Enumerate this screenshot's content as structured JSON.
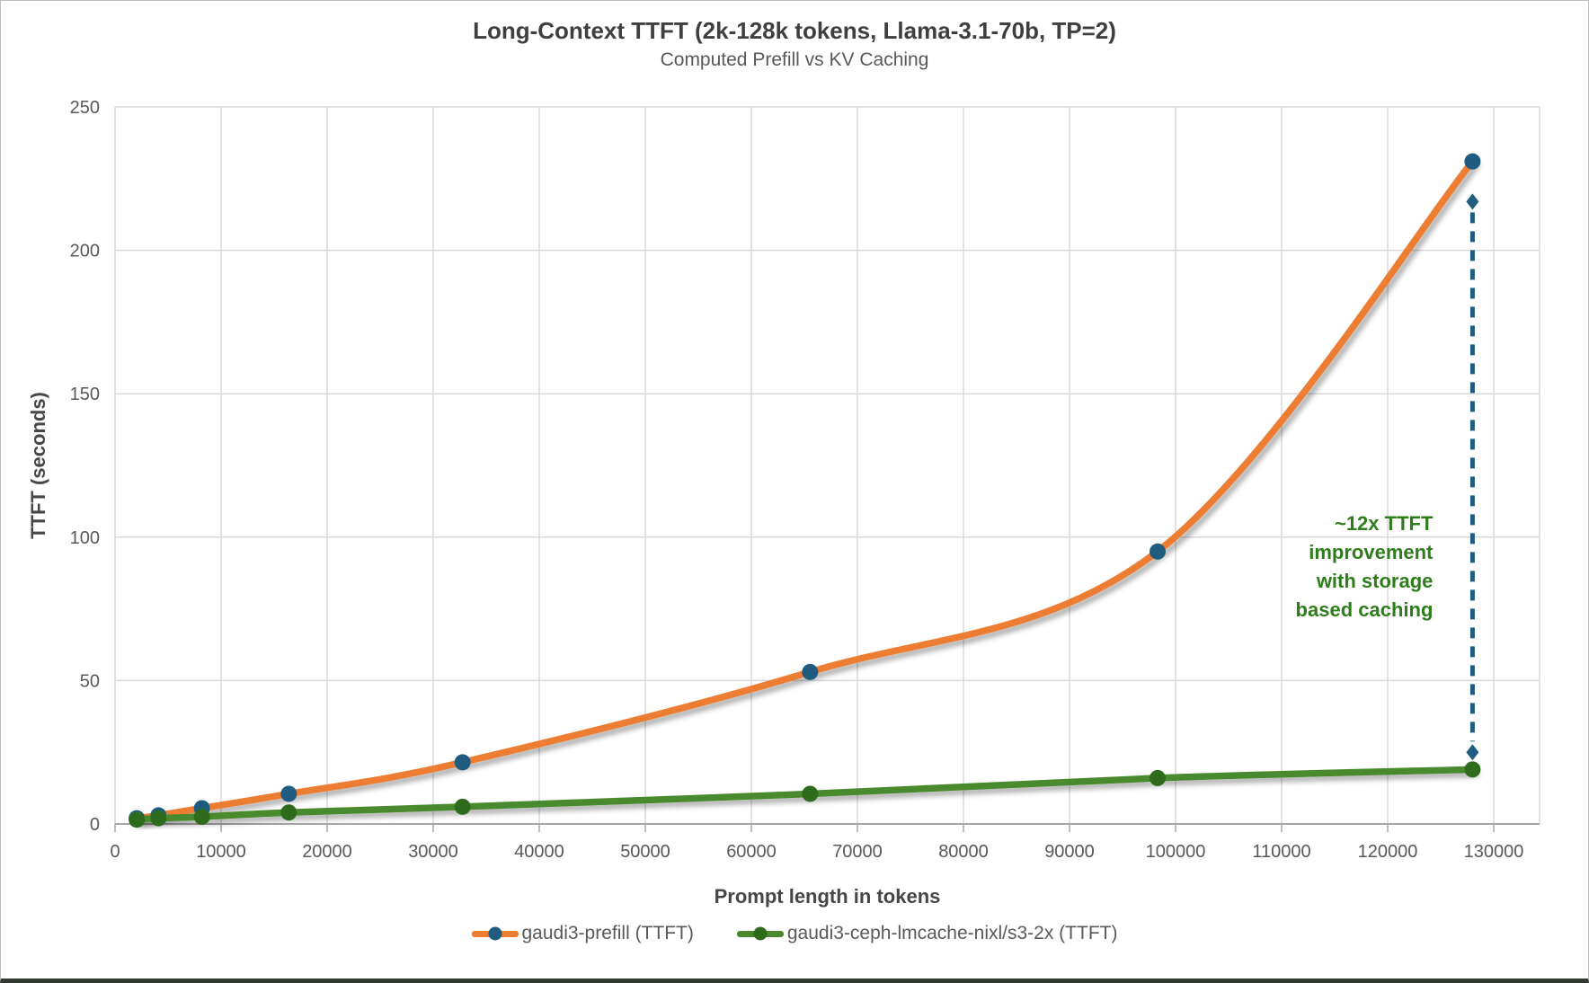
{
  "chart_data": {
    "type": "line",
    "title": "Long-Context TTFT (2k-128k tokens, Llama-3.1-70b, TP=2)",
    "subtitle": "Computed Prefill vs KV Caching",
    "xlabel": "Prompt length in tokens",
    "ylabel": "TTFT (seconds)",
    "x": [
      2048,
      4096,
      8192,
      16384,
      32768,
      65536,
      98304,
      128000
    ],
    "series": [
      {
        "name": "gaudi3-prefill (TTFT)",
        "line_color": "#ED7D31",
        "marker_color": "#1F5C80",
        "values": [
          2,
          3,
          5.5,
          10.5,
          21.5,
          53,
          95,
          231
        ]
      },
      {
        "name": "gaudi3-ceph-lmcache-nixl/s3-2x (TTFT)",
        "line_color": "#4A8A2D",
        "marker_color": "#2F6B1C",
        "values": [
          1.5,
          2,
          2.5,
          4,
          6,
          10.5,
          16,
          19
        ]
      }
    ],
    "xlim": [
      0,
      134500
    ],
    "ylim": [
      0,
      250
    ],
    "x_ticks": [
      0,
      10000,
      20000,
      30000,
      40000,
      50000,
      60000,
      70000,
      80000,
      90000,
      100000,
      110000,
      120000,
      130000
    ],
    "y_ticks": [
      0,
      50,
      100,
      150,
      200,
      250
    ],
    "grid": true,
    "legend_position": "bottom",
    "annotation": {
      "lines": [
        "~12x TTFT",
        "improvement",
        "with storage",
        "based caching"
      ],
      "color": "#2E7D1B"
    },
    "reference_line": {
      "x": 128000,
      "y_from": 25,
      "y_to": 217,
      "style": "dashed",
      "color": "#1F5C80",
      "marker": "diamond"
    },
    "theme": {
      "grid_color": "#D9D9D9",
      "axis_line_color": "#A6A6A6",
      "tick_label_color": "#595959",
      "title_color": "#3F3F3F",
      "subtitle_color": "#595959"
    }
  }
}
